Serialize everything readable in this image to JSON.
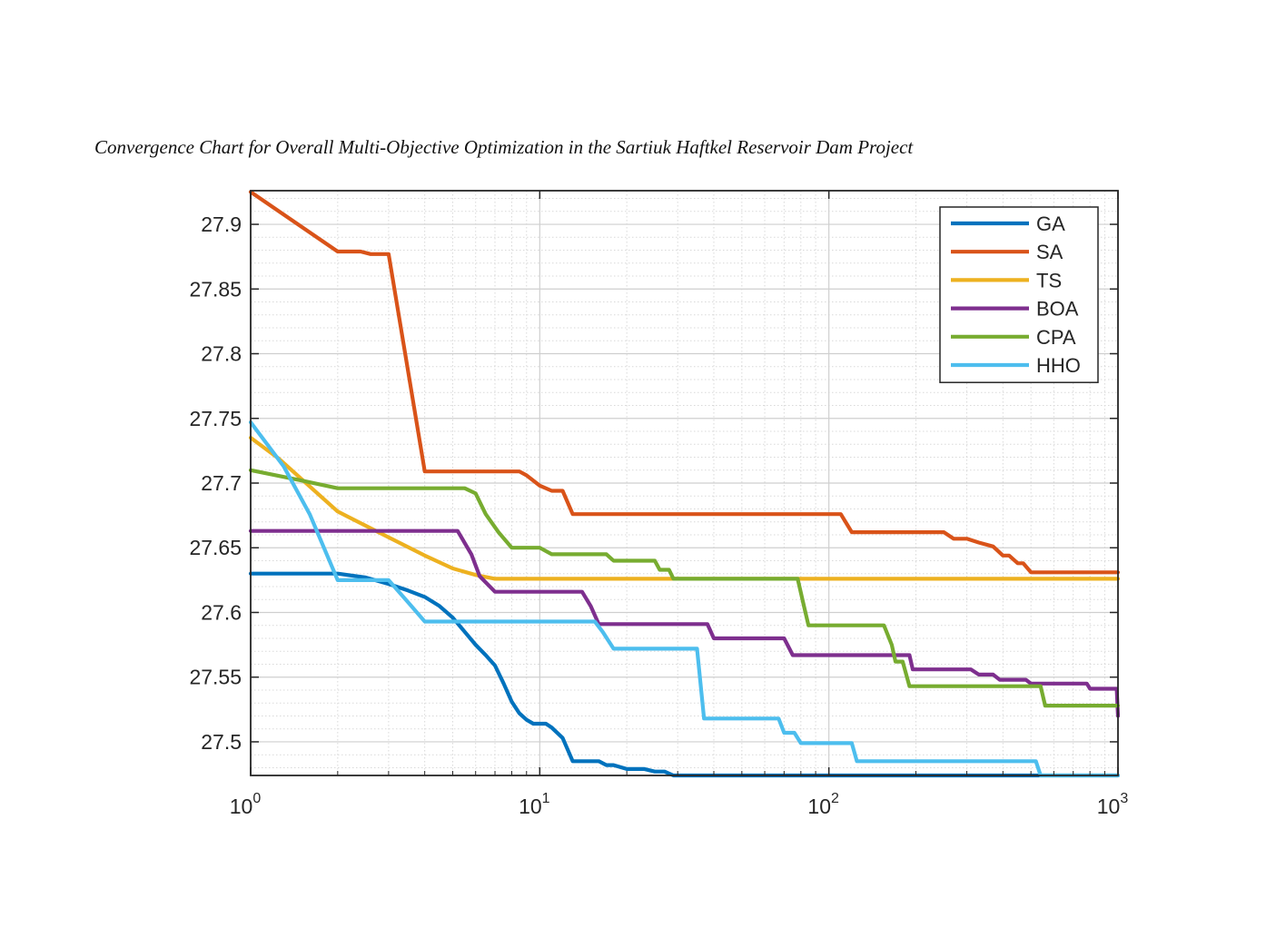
{
  "caption": "Convergence Chart for Overall Multi-Objective Optimization in the Sartiuk Haftkel Reservoir Dam Project",
  "chart_data": {
    "type": "line",
    "title": "",
    "xlabel": "",
    "ylabel": "",
    "xscale": "log",
    "xlim": [
      1,
      1000
    ],
    "ylim": [
      27.474,
      27.926
    ],
    "grid": true,
    "minor_grid": true,
    "legend_position": "top-right",
    "x_ticks": [
      {
        "value": 1,
        "base": "10",
        "exp": "0"
      },
      {
        "value": 10,
        "base": "10",
        "exp": "1"
      },
      {
        "value": 100,
        "base": "10",
        "exp": "2"
      },
      {
        "value": 1000,
        "base": "10",
        "exp": "3"
      }
    ],
    "y_ticks": [
      {
        "value": 27.5,
        "label": "27.5"
      },
      {
        "value": 27.55,
        "label": "27.55"
      },
      {
        "value": 27.6,
        "label": "27.6"
      },
      {
        "value": 27.65,
        "label": "27.65"
      },
      {
        "value": 27.7,
        "label": "27.7"
      },
      {
        "value": 27.75,
        "label": "27.75"
      },
      {
        "value": 27.8,
        "label": "27.8"
      },
      {
        "value": 27.85,
        "label": "27.85"
      },
      {
        "value": 27.9,
        "label": "27.9"
      }
    ],
    "series": [
      {
        "name": "GA",
        "color": "#0072BD",
        "points": [
          [
            1,
            27.63
          ],
          [
            2,
            27.63
          ],
          [
            2.5,
            27.627
          ],
          [
            3,
            27.622
          ],
          [
            3.5,
            27.617
          ],
          [
            4,
            27.612
          ],
          [
            4.5,
            27.605
          ],
          [
            5,
            27.596
          ],
          [
            5.5,
            27.585
          ],
          [
            6,
            27.575
          ],
          [
            6.5,
            27.567
          ],
          [
            7,
            27.559
          ],
          [
            7.5,
            27.545
          ],
          [
            8,
            27.531
          ],
          [
            8.5,
            27.522
          ],
          [
            9,
            27.517
          ],
          [
            9.5,
            27.514
          ],
          [
            10.5,
            27.514
          ],
          [
            11,
            27.511
          ],
          [
            12,
            27.503
          ],
          [
            13,
            27.485
          ],
          [
            16,
            27.485
          ],
          [
            17,
            27.482
          ],
          [
            18,
            27.482
          ],
          [
            20,
            27.479
          ],
          [
            23,
            27.479
          ],
          [
            25,
            27.477
          ],
          [
            27,
            27.477
          ],
          [
            29,
            27.474
          ],
          [
            1000,
            27.474
          ]
        ]
      },
      {
        "name": "SA",
        "color": "#D95319",
        "points": [
          [
            1,
            27.925
          ],
          [
            2,
            27.879
          ],
          [
            2.4,
            27.879
          ],
          [
            2.6,
            27.877
          ],
          [
            3.0,
            27.877
          ],
          [
            4.0,
            27.709
          ],
          [
            8.5,
            27.709
          ],
          [
            9.0,
            27.706
          ],
          [
            10.0,
            27.698
          ],
          [
            11.0,
            27.694
          ],
          [
            12.0,
            27.694
          ],
          [
            13.0,
            27.676
          ],
          [
            110,
            27.676
          ],
          [
            120,
            27.662
          ],
          [
            250,
            27.662
          ],
          [
            270,
            27.657
          ],
          [
            300,
            27.657
          ],
          [
            330,
            27.654
          ],
          [
            370,
            27.651
          ],
          [
            400,
            27.644
          ],
          [
            420,
            27.644
          ],
          [
            450,
            27.638
          ],
          [
            470,
            27.638
          ],
          [
            500,
            27.631
          ],
          [
            1000,
            27.631
          ]
        ]
      },
      {
        "name": "TS",
        "color": "#EDB120",
        "points": [
          [
            1,
            27.735
          ],
          [
            1.25,
            27.719
          ],
          [
            1.5,
            27.703
          ],
          [
            2,
            27.678
          ],
          [
            3,
            27.658
          ],
          [
            4,
            27.644
          ],
          [
            5,
            27.634
          ],
          [
            6,
            27.629
          ],
          [
            7,
            27.626
          ],
          [
            1000,
            27.626
          ]
        ]
      },
      {
        "name": "BOA",
        "color": "#7E2F8E",
        "points": [
          [
            1,
            27.663
          ],
          [
            5.2,
            27.663
          ],
          [
            5.8,
            27.645
          ],
          [
            6.2,
            27.628
          ],
          [
            7,
            27.616
          ],
          [
            14,
            27.616
          ],
          [
            15,
            27.605
          ],
          [
            16,
            27.591
          ],
          [
            38,
            27.591
          ],
          [
            40,
            27.58
          ],
          [
            70,
            27.58
          ],
          [
            75,
            27.567
          ],
          [
            190,
            27.567
          ],
          [
            195,
            27.556
          ],
          [
            310,
            27.556
          ],
          [
            330,
            27.552
          ],
          [
            370,
            27.552
          ],
          [
            390,
            27.548
          ],
          [
            480,
            27.548
          ],
          [
            500,
            27.545
          ],
          [
            780,
            27.545
          ],
          [
            800,
            27.541
          ],
          [
            990,
            27.541
          ],
          [
            1000,
            27.52
          ]
        ]
      },
      {
        "name": "CPA",
        "color": "#77AC30",
        "points": [
          [
            1,
            27.71
          ],
          [
            1.5,
            27.702
          ],
          [
            2,
            27.696
          ],
          [
            5.5,
            27.696
          ],
          [
            6,
            27.692
          ],
          [
            6.5,
            27.676
          ],
          [
            7.2,
            27.662
          ],
          [
            8,
            27.65
          ],
          [
            10,
            27.65
          ],
          [
            11,
            27.645
          ],
          [
            17,
            27.645
          ],
          [
            18,
            27.64
          ],
          [
            25,
            27.64
          ],
          [
            26,
            27.633
          ],
          [
            28,
            27.633
          ],
          [
            29,
            27.626
          ],
          [
            78,
            27.626
          ],
          [
            82,
            27.605
          ],
          [
            85,
            27.59
          ],
          [
            155,
            27.59
          ],
          [
            165,
            27.575
          ],
          [
            170,
            27.562
          ],
          [
            180,
            27.562
          ],
          [
            190,
            27.543
          ],
          [
            540,
            27.543
          ],
          [
            560,
            27.528
          ],
          [
            1000,
            27.528
          ]
        ]
      },
      {
        "name": "HHO",
        "color": "#4DBEEE",
        "points": [
          [
            1,
            27.747
          ],
          [
            1.3,
            27.713
          ],
          [
            1.6,
            27.676
          ],
          [
            2,
            27.625
          ],
          [
            3,
            27.625
          ],
          [
            3.5,
            27.608
          ],
          [
            4,
            27.593
          ],
          [
            15.5,
            27.593
          ],
          [
            16.5,
            27.585
          ],
          [
            18,
            27.572
          ],
          [
            35,
            27.572
          ],
          [
            37,
            27.518
          ],
          [
            67,
            27.518
          ],
          [
            70,
            27.507
          ],
          [
            76,
            27.507
          ],
          [
            80,
            27.499
          ],
          [
            120,
            27.499
          ],
          [
            125,
            27.485
          ],
          [
            520,
            27.485
          ],
          [
            540,
            27.474
          ],
          [
            1000,
            27.474
          ]
        ]
      }
    ]
  }
}
